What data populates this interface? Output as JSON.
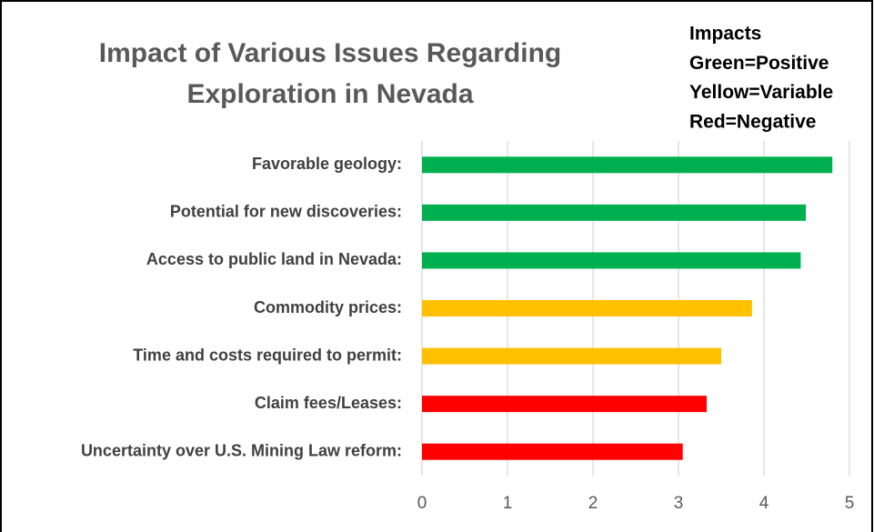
{
  "chart_data": {
    "type": "bar",
    "orientation": "horizontal",
    "title": "Impact of Various Issues Regarding Exploration in Nevada",
    "annotations": [
      "Impacts",
      "Green=Positive",
      "Yellow=Variable",
      "Red=Negative"
    ],
    "categories": [
      "Favorable geology:",
      "Potential for new discoveries:",
      "Access to public land in Nevada:",
      "Commodity prices:",
      "Time and costs required to permit:",
      "Claim fees/Leases:",
      "Uncertainty over U.S. Mining Law reform:"
    ],
    "values": [
      4.8,
      4.49,
      4.43,
      3.86,
      3.5,
      3.33,
      3.05
    ],
    "colors": [
      "#00b050",
      "#00b050",
      "#00b050",
      "#ffc000",
      "#ffc000",
      "#ff0000",
      "#ff0000"
    ],
    "xlim": [
      0,
      5
    ],
    "xticks": [
      0,
      1,
      2,
      3,
      4,
      5
    ],
    "grid": true
  }
}
